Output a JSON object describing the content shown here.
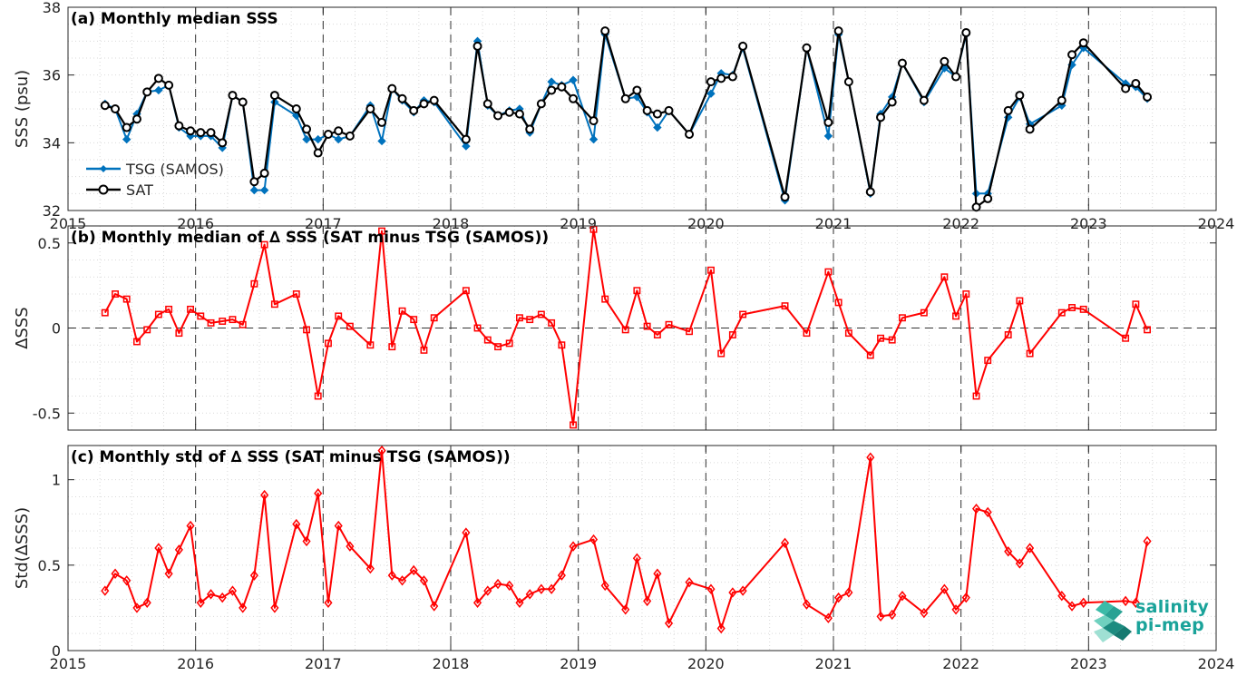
{
  "logo": {
    "line1": "salinity",
    "line2": "pi-mep"
  },
  "chart_data": [
    {
      "type": "line",
      "title": "(a) Monthly median SSS",
      "xlabel": "",
      "ylabel": "SSS (psu)",
      "xlim": [
        2015,
        2024
      ],
      "ylim": [
        32,
        38
      ],
      "xticks": [
        "2015",
        "2016",
        "2017",
        "2018",
        "2019",
        "2020",
        "2021",
        "2022",
        "2023",
        "2024"
      ],
      "yticks": [
        32,
        34,
        36,
        38
      ],
      "grid": true,
      "legend": "left",
      "series": [
        {
          "name": "TSG (SAMOS)",
          "color": "#0072bd",
          "marker": "diamond",
          "x": [
            2015.29,
            2015.37,
            2015.46,
            2015.54,
            2015.62,
            2015.71,
            2015.79,
            2015.87,
            2015.96,
            2016.04,
            2016.12,
            2016.21,
            2016.29,
            2016.37,
            2016.46,
            2016.54,
            2016.62,
            2016.79,
            2016.87,
            2016.96,
            2017.04,
            2017.12,
            2017.21,
            2017.37,
            2017.46,
            2017.54,
            2017.62,
            2017.71,
            2017.79,
            2017.87,
            2018.12,
            2018.21,
            2018.29,
            2018.37,
            2018.46,
            2018.54,
            2018.62,
            2018.71,
            2018.79,
            2018.87,
            2018.96,
            2019.12,
            2019.21,
            2019.37,
            2019.46,
            2019.54,
            2019.62,
            2019.71,
            2019.87,
            2020.04,
            2020.12,
            2020.21,
            2020.29,
            2020.62,
            2020.79,
            2020.96,
            2021.04,
            2021.12,
            2021.29,
            2021.37,
            2021.46,
            2021.54,
            2021.71,
            2021.87,
            2021.96,
            2022.04,
            2022.12,
            2022.21,
            2022.37,
            2022.46,
            2022.54,
            2022.79,
            2022.87,
            2022.96,
            2023.29,
            2023.37,
            2023.46
          ],
          "y": [
            35.15,
            35.0,
            34.1,
            34.85,
            35.5,
            35.55,
            35.7,
            34.45,
            34.2,
            34.2,
            34.2,
            33.85,
            35.4,
            35.2,
            32.6,
            32.6,
            35.2,
            34.8,
            34.1,
            34.1,
            34.25,
            34.1,
            34.2,
            35.1,
            34.05,
            35.6,
            35.25,
            34.9,
            35.25,
            35.2,
            33.9,
            37.0,
            35.1,
            34.8,
            34.95,
            35.0,
            34.3,
            35.15,
            35.8,
            35.7,
            35.85,
            34.1,
            37.2,
            35.3,
            35.35,
            34.9,
            34.45,
            34.95,
            34.25,
            35.45,
            36.05,
            36.0,
            36.8,
            32.3,
            36.8,
            34.2,
            37.2,
            35.8,
            32.5,
            34.85,
            35.35,
            36.35,
            35.2,
            36.2,
            35.95,
            37.2,
            32.5,
            32.5,
            34.75,
            35.35,
            34.55,
            35.1,
            36.3,
            36.8,
            35.75,
            35.65,
            35.3
          ]
        },
        {
          "name": "SAT",
          "color": "#000000",
          "marker": "circle",
          "x": [
            2015.29,
            2015.37,
            2015.46,
            2015.54,
            2015.62,
            2015.71,
            2015.79,
            2015.87,
            2015.96,
            2016.04,
            2016.12,
            2016.21,
            2016.29,
            2016.37,
            2016.46,
            2016.54,
            2016.62,
            2016.79,
            2016.87,
            2016.96,
            2017.04,
            2017.12,
            2017.21,
            2017.37,
            2017.46,
            2017.54,
            2017.62,
            2017.71,
            2017.79,
            2017.87,
            2018.12,
            2018.21,
            2018.29,
            2018.37,
            2018.46,
            2018.54,
            2018.62,
            2018.71,
            2018.79,
            2018.87,
            2018.96,
            2019.12,
            2019.21,
            2019.37,
            2019.46,
            2019.54,
            2019.62,
            2019.71,
            2019.87,
            2020.04,
            2020.12,
            2020.21,
            2020.29,
            2020.62,
            2020.79,
            2020.96,
            2021.04,
            2021.12,
            2021.29,
            2021.37,
            2021.46,
            2021.54,
            2021.71,
            2021.87,
            2021.96,
            2022.04,
            2022.12,
            2022.21,
            2022.37,
            2022.46,
            2022.54,
            2022.79,
            2022.87,
            2022.96,
            2023.29,
            2023.37,
            2023.46
          ],
          "y": [
            35.1,
            35.0,
            34.45,
            34.7,
            35.5,
            35.9,
            35.7,
            34.5,
            34.35,
            34.3,
            34.3,
            34.0,
            35.4,
            35.2,
            32.85,
            33.1,
            35.4,
            35.0,
            34.4,
            33.7,
            34.25,
            34.35,
            34.2,
            35.0,
            34.6,
            35.6,
            35.3,
            34.95,
            35.15,
            35.25,
            34.1,
            36.85,
            35.15,
            34.8,
            34.9,
            34.85,
            34.4,
            35.15,
            35.55,
            35.65,
            35.3,
            34.65,
            37.3,
            35.3,
            35.55,
            34.95,
            34.85,
            34.95,
            34.25,
            35.8,
            35.9,
            35.95,
            36.85,
            32.4,
            36.8,
            34.6,
            37.3,
            35.8,
            32.55,
            34.75,
            35.2,
            36.35,
            35.25,
            36.4,
            35.95,
            37.25,
            32.1,
            32.35,
            34.95,
            35.4,
            34.4,
            35.25,
            36.6,
            36.95,
            35.6,
            35.75,
            35.35
          ]
        }
      ]
    },
    {
      "type": "line",
      "title": "(b) Monthly median of ∆ SSS (SAT minus TSG (SAMOS))",
      "xlabel": "",
      "ylabel": "∆SSS",
      "xlim": [
        2015,
        2024
      ],
      "ylim": [
        -0.6,
        0.6
      ],
      "xticks": [],
      "yticks": [
        -0.5,
        0,
        0.5
      ],
      "yticklabels": [
        "-0.5",
        "0",
        "0.5"
      ],
      "grid": true,
      "series": [
        {
          "name": "",
          "color": "#ff0000",
          "marker": "square",
          "x": [
            2015.29,
            2015.37,
            2015.46,
            2015.54,
            2015.62,
            2015.71,
            2015.79,
            2015.87,
            2015.96,
            2016.04,
            2016.12,
            2016.21,
            2016.29,
            2016.37,
            2016.46,
            2016.54,
            2016.62,
            2016.79,
            2016.87,
            2016.96,
            2017.04,
            2017.12,
            2017.21,
            2017.37,
            2017.46,
            2017.54,
            2017.62,
            2017.71,
            2017.79,
            2017.87,
            2018.12,
            2018.21,
            2018.29,
            2018.37,
            2018.46,
            2018.54,
            2018.62,
            2018.71,
            2018.79,
            2018.87,
            2018.96,
            2019.12,
            2019.21,
            2019.37,
            2019.46,
            2019.54,
            2019.62,
            2019.71,
            2019.87,
            2020.04,
            2020.12,
            2020.21,
            2020.29,
            2020.62,
            2020.79,
            2020.96,
            2021.04,
            2021.12,
            2021.29,
            2021.37,
            2021.46,
            2021.54,
            2021.71,
            2021.87,
            2021.96,
            2022.04,
            2022.12,
            2022.21,
            2022.37,
            2022.46,
            2022.54,
            2022.79,
            2022.87,
            2022.96,
            2023.29,
            2023.37,
            2023.46
          ],
          "y": [
            0.09,
            0.2,
            0.17,
            -0.08,
            -0.01,
            0.08,
            0.11,
            -0.03,
            0.11,
            0.07,
            0.03,
            0.04,
            0.05,
            0.02,
            0.26,
            0.49,
            0.14,
            0.2,
            -0.01,
            -0.4,
            -0.09,
            0.07,
            0.01,
            -0.1,
            0.57,
            -0.11,
            0.1,
            0.05,
            -0.13,
            0.06,
            0.22,
            0.0,
            -0.07,
            -0.11,
            -0.09,
            0.06,
            0.05,
            0.08,
            0.03,
            -0.1,
            -0.57,
            0.58,
            0.17,
            -0.01,
            0.22,
            0.01,
            -0.04,
            0.02,
            -0.02,
            0.34,
            -0.15,
            -0.04,
            0.08,
            0.13,
            -0.03,
            0.33,
            0.15,
            -0.03,
            -0.16,
            -0.06,
            -0.07,
            0.06,
            0.09,
            0.3,
            0.07,
            0.2,
            -0.4,
            -0.19,
            -0.04,
            0.16,
            -0.15,
            0.09,
            0.12,
            0.11,
            -0.06,
            0.14,
            -0.01
          ]
        }
      ]
    },
    {
      "type": "line",
      "title": "(c) Monthly std of ∆ SSS (SAT minus TSG (SAMOS))",
      "xlabel": "",
      "ylabel": "Std(∆SSS)",
      "xlim": [
        2015,
        2024
      ],
      "ylim": [
        0,
        1.2
      ],
      "xticks": [
        "2015",
        "2016",
        "2017",
        "2018",
        "2019",
        "2020",
        "2021",
        "2022",
        "2023",
        "2024"
      ],
      "yticks": [
        0,
        0.5,
        1
      ],
      "yticklabels": [
        "0",
        "0.5",
        "1"
      ],
      "grid": true,
      "series": [
        {
          "name": "",
          "color": "#ff0000",
          "marker": "diamond",
          "x": [
            2015.29,
            2015.37,
            2015.46,
            2015.54,
            2015.62,
            2015.71,
            2015.79,
            2015.87,
            2015.96,
            2016.04,
            2016.12,
            2016.21,
            2016.29,
            2016.37,
            2016.46,
            2016.54,
            2016.62,
            2016.79,
            2016.87,
            2016.96,
            2017.04,
            2017.12,
            2017.21,
            2017.37,
            2017.46,
            2017.54,
            2017.62,
            2017.71,
            2017.79,
            2017.87,
            2018.12,
            2018.21,
            2018.29,
            2018.37,
            2018.46,
            2018.54,
            2018.62,
            2018.71,
            2018.79,
            2018.87,
            2018.96,
            2019.12,
            2019.21,
            2019.37,
            2019.46,
            2019.54,
            2019.62,
            2019.71,
            2019.87,
            2020.04,
            2020.12,
            2020.21,
            2020.29,
            2020.62,
            2020.79,
            2020.96,
            2021.04,
            2021.12,
            2021.29,
            2021.37,
            2021.46,
            2021.54,
            2021.71,
            2021.87,
            2021.96,
            2022.04,
            2022.12,
            2022.21,
            2022.37,
            2022.46,
            2022.54,
            2022.79,
            2022.87,
            2022.96,
            2023.29,
            2023.37,
            2023.46
          ],
          "y": [
            0.35,
            0.45,
            0.41,
            0.25,
            0.28,
            0.6,
            0.45,
            0.59,
            0.73,
            0.28,
            0.33,
            0.31,
            0.35,
            0.25,
            0.44,
            0.91,
            0.25,
            0.74,
            0.64,
            0.92,
            0.28,
            0.73,
            0.61,
            0.48,
            1.17,
            0.44,
            0.41,
            0.47,
            0.41,
            0.26,
            0.69,
            0.28,
            0.35,
            0.39,
            0.38,
            0.28,
            0.33,
            0.36,
            0.36,
            0.44,
            0.61,
            0.65,
            0.38,
            0.24,
            0.54,
            0.29,
            0.45,
            0.16,
            0.4,
            0.36,
            0.13,
            0.34,
            0.35,
            0.63,
            0.27,
            0.19,
            0.31,
            0.34,
            1.13,
            0.2,
            0.21,
            0.32,
            0.22,
            0.36,
            0.24,
            0.31,
            0.83,
            0.81,
            0.58,
            0.51,
            0.6,
            0.32,
            0.26,
            0.28,
            0.29,
            0.28,
            0.64
          ]
        }
      ]
    }
  ]
}
